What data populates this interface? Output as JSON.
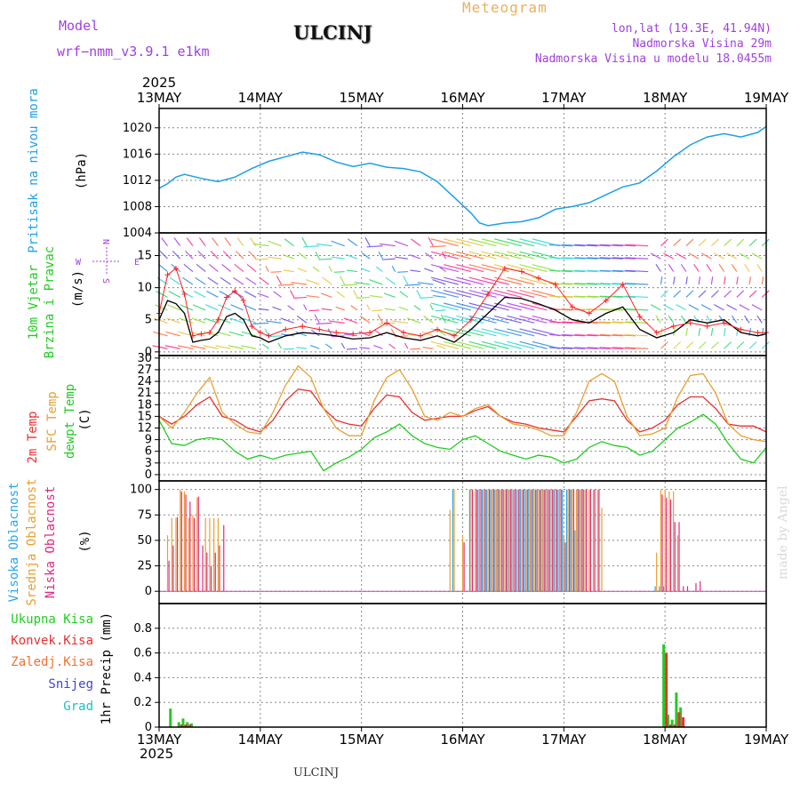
{
  "header": {
    "model_label": "Model",
    "model_name": "wrf−nmm_v3.9.1  e1km",
    "station": "ULCINJ",
    "meteogram": "Meteogram",
    "lonlat": "lon,lat (19.3E, 41.94N)",
    "elevation": "Nadmorska Visina 29m",
    "model_elevation": "Nadmorska Visina u modelu 18.0455m",
    "footer_station": "ULCINJ",
    "made_by": "made by Angel"
  },
  "axis": {
    "year": "2025",
    "dates": [
      "13MAY",
      "14MAY",
      "15MAY",
      "16MAY",
      "17MAY",
      "18MAY",
      "19MAY"
    ]
  },
  "colors": {
    "pressure": "#1e9fe8",
    "wind_speed": "#000000",
    "wind_gust": "#ff2020",
    "t2m": "#e83030",
    "sfc": "#e8a030",
    "dewpt": "#22cc22",
    "cloud_high": "#2aa8e8",
    "cloud_mid": "#e8a030",
    "cloud_low": "#e02880",
    "rain_total": "#22cc22",
    "rain_conv": "#e83030",
    "rain_frz": "#f07030",
    "snow": "#4040e0",
    "hail": "#20c0c0",
    "compass": "#a040e0"
  },
  "labels": {
    "pressure_title": "Pritisak na nivou mora",
    "pressure_unit": "(hPa)",
    "wind_title1": "10m Vjetar",
    "wind_title2": "Brzina i Pravac",
    "wind_unit": "(m/s)",
    "temp_t2m": "2m Temp",
    "temp_sfc": "SFC Temp",
    "temp_dew": "dewpt Temp",
    "temp_unit": "(C)",
    "cloud_high": "Visoka Oblacnost",
    "cloud_mid": "Srednja Oblacnost",
    "cloud_low": "Niska Oblacnost",
    "cloud_unit": "(%)",
    "precip_total": "Ukupna Kisa",
    "precip_conv": "Konvek.Kisa",
    "precip_frz": "Zaledj.Kisa",
    "precip_snow": "Snijeg",
    "precip_hail": "Grad",
    "precip_unit": "1hr Precip (mm)",
    "compass_n": "N",
    "compass_s": "S",
    "compass_e": "E",
    "compass_w": "W"
  },
  "chart_data": [
    {
      "type": "line",
      "name": "pressure",
      "xlabel": "",
      "ylabel": "(hPa)",
      "ylim": [
        1004,
        1022
      ],
      "yticks": [
        1004,
        1008,
        1012,
        1016,
        1020
      ],
      "x_hours": [
        0,
        2,
        4,
        6,
        10,
        14,
        18,
        22,
        26,
        30,
        34,
        38,
        42,
        46,
        50,
        54,
        58,
        62,
        66,
        70,
        74,
        76,
        78,
        82,
        86,
        90,
        94,
        98,
        102,
        106,
        110,
        114,
        118,
        122,
        126,
        130,
        134,
        138,
        142,
        144
      ],
      "values": [
        1010.8,
        1011.5,
        1012.5,
        1012.9,
        1012.3,
        1011.8,
        1012.5,
        1013.8,
        1014.9,
        1015.6,
        1016.3,
        1015.9,
        1014.8,
        1014.1,
        1014.6,
        1014.0,
        1013.8,
        1013.3,
        1011.8,
        1009.4,
        1007.0,
        1005.5,
        1005.1,
        1005.5,
        1005.7,
        1006.3,
        1007.6,
        1008.0,
        1008.6,
        1009.8,
        1011.0,
        1011.6,
        1013.4,
        1015.6,
        1017.4,
        1018.6,
        1019.1,
        1018.6,
        1019.3,
        1020.2
      ]
    },
    {
      "type": "line",
      "name": "wind",
      "xlabel": "",
      "ylabel": "(m/s)",
      "ylim": [
        0,
        17
      ],
      "yticks": [
        0,
        5,
        10,
        15
      ],
      "x_hours": [
        0,
        2,
        4,
        6,
        8,
        10,
        12,
        14,
        16,
        18,
        20,
        22,
        24,
        26,
        30,
        34,
        38,
        42,
        46,
        50,
        54,
        58,
        62,
        66,
        70,
        74,
        78,
        82,
        86,
        90,
        94,
        98,
        102,
        106,
        110,
        114,
        118,
        122,
        126,
        130,
        134,
        138,
        142,
        144
      ],
      "speed": [
        5,
        8,
        7.5,
        6,
        1.5,
        1.8,
        2,
        3,
        5.5,
        6,
        5,
        2.5,
        2.2,
        1.5,
        2.5,
        3,
        2.8,
        2.5,
        2,
        2.2,
        3,
        2.2,
        1.8,
        2.5,
        1.5,
        3.5,
        6,
        8.5,
        8.3,
        7.5,
        6.5,
        5,
        4.5,
        6,
        7,
        3.5,
        2.2,
        3,
        5,
        4.5,
        5,
        3,
        2.5,
        2.8
      ],
      "gust": [
        6,
        12,
        13,
        9,
        2.5,
        2.8,
        3,
        5,
        8.5,
        9.5,
        8,
        4,
        3,
        2.5,
        3.5,
        4,
        3.5,
        3,
        2.8,
        3,
        4.5,
        3,
        2.5,
        3.5,
        2.5,
        5,
        9,
        13,
        12.5,
        11.5,
        10.5,
        7,
        6,
        8,
        10.5,
        5.5,
        3,
        4,
        4.5,
        4,
        4.5,
        3.5,
        3,
        3
      ]
    },
    {
      "type": "line",
      "name": "temperature",
      "xlabel": "",
      "ylabel": "(C)",
      "ylim": [
        0,
        30
      ],
      "yticks": [
        0,
        3,
        6,
        9,
        12,
        15,
        18,
        21,
        24,
        27,
        30
      ],
      "x_hours": [
        0,
        3,
        6,
        9,
        12,
        15,
        18,
        21,
        24,
        27,
        30,
        33,
        36,
        39,
        42,
        45,
        48,
        51,
        54,
        57,
        60,
        63,
        66,
        69,
        72,
        75,
        78,
        81,
        84,
        87,
        90,
        93,
        96,
        99,
        102,
        105,
        108,
        111,
        114,
        117,
        120,
        123,
        126,
        129,
        132,
        135,
        138,
        141,
        144
      ],
      "series": [
        {
          "name": "2m Temp",
          "values": [
            15,
            13,
            15,
            18,
            20,
            15,
            14,
            12,
            11,
            14,
            19,
            22,
            21.5,
            17,
            14,
            13,
            12.5,
            17,
            20.5,
            20,
            16,
            14,
            14.5,
            15,
            15,
            16.5,
            17.5,
            15,
            13.5,
            13,
            12,
            11.5,
            11,
            15,
            19,
            19.5,
            19,
            14,
            11,
            12,
            14,
            18,
            20,
            20,
            17,
            13,
            12.5,
            12.5,
            11
          ]
        },
        {
          "name": "SFC Temp",
          "values": [
            15,
            12,
            16,
            21,
            25,
            16,
            13,
            11,
            10.5,
            16,
            23,
            28,
            25,
            17,
            12,
            10,
            10,
            19,
            25,
            27,
            22,
            15,
            14,
            16,
            15,
            17,
            18,
            15,
            13,
            12.5,
            11.5,
            10,
            10,
            16,
            24,
            26,
            24,
            15,
            10,
            10.5,
            12,
            20,
            25.5,
            26,
            21,
            13,
            10,
            9,
            8.5
          ]
        },
        {
          "name": "dewpt Temp",
          "values": [
            14,
            8,
            7.5,
            9,
            9.5,
            9,
            6,
            4,
            5,
            4,
            5,
            5.5,
            6,
            1,
            3,
            4.5,
            6.5,
            9.5,
            11,
            13,
            10,
            8,
            7,
            6.5,
            9,
            10,
            8,
            6,
            5,
            4,
            5,
            4.5,
            3,
            4,
            7,
            8.5,
            7.5,
            7,
            5,
            6,
            9,
            12,
            13.5,
            15.5,
            13,
            8,
            4,
            3,
            7
          ]
        }
      ]
    },
    {
      "type": "bar",
      "name": "clouds",
      "xlabel": "",
      "ylabel": "(%)",
      "ylim": [
        0,
        100
      ],
      "yticks": [
        0,
        25,
        50,
        75,
        100
      ],
      "x_hours": [
        2,
        3,
        4,
        5,
        6,
        7,
        8,
        9,
        10,
        11,
        12,
        13,
        14,
        15,
        16,
        17,
        18,
        19,
        20,
        21,
        22,
        23,
        24,
        26,
        69,
        70,
        72,
        74,
        75,
        76,
        77,
        78,
        79,
        80,
        81,
        82,
        83,
        84,
        85,
        86,
        87,
        88,
        89,
        90,
        91,
        92,
        93,
        94,
        95,
        96,
        97,
        98,
        99,
        100,
        101,
        102,
        103,
        104,
        105,
        118,
        119,
        120,
        121,
        122,
        123,
        124,
        125,
        126,
        127,
        128,
        129,
        130,
        131,
        132,
        133,
        134
      ],
      "series": [
        {
          "name": "Visoka Oblacnost",
          "values": [
            0,
            0,
            0,
            0,
            0,
            0,
            0,
            0,
            0,
            0,
            0,
            0,
            0,
            0,
            0,
            0,
            0,
            0,
            0,
            0,
            0,
            0,
            0,
            0,
            0,
            100,
            0,
            100,
            0,
            100,
            100,
            100,
            100,
            100,
            100,
            100,
            100,
            100,
            100,
            100,
            100,
            100,
            100,
            100,
            100,
            100,
            100,
            100,
            100,
            100,
            100,
            100,
            60,
            100,
            100,
            0,
            0,
            0,
            0,
            5,
            5,
            5,
            0,
            0,
            0,
            0,
            0,
            0,
            0,
            0,
            0,
            0,
            0,
            0,
            0,
            0
          ]
        },
        {
          "name": "Srednja Oblacnost",
          "values": [
            55,
            72,
            72,
            100,
            98,
            72,
            75,
            92,
            0,
            72,
            72,
            72,
            72,
            0,
            0,
            0,
            0,
            0,
            0,
            0,
            0,
            0,
            0,
            0,
            80,
            100,
            55,
            100,
            100,
            100,
            100,
            100,
            100,
            100,
            100,
            100,
            100,
            100,
            100,
            100,
            100,
            100,
            100,
            100,
            100,
            100,
            100,
            100,
            100,
            55,
            100,
            100,
            100,
            100,
            100,
            100,
            100,
            100,
            82,
            38,
            100,
            100,
            98,
            98,
            55,
            0,
            0,
            0,
            0,
            0,
            0,
            0,
            0,
            0,
            0,
            0
          ]
        },
        {
          "name": "Niska Oblacnost",
          "values": [
            30,
            45,
            73,
            98,
            95,
            88,
            72,
            93,
            45,
            38,
            25,
            38,
            45,
            65,
            0,
            0,
            0,
            0,
            0,
            0,
            0,
            0,
            0,
            0,
            0,
            0,
            48,
            100,
            100,
            100,
            100,
            100,
            100,
            100,
            100,
            100,
            100,
            100,
            100,
            100,
            100,
            100,
            100,
            100,
            100,
            100,
            100,
            100,
            100,
            48,
            100,
            100,
            100,
            100,
            100,
            100,
            100,
            100,
            0,
            0,
            95,
            92,
            90,
            68,
            68,
            5,
            5,
            0,
            8,
            10,
            0,
            0,
            0,
            0,
            0,
            0
          ]
        }
      ]
    },
    {
      "type": "bar",
      "name": "precipitation",
      "xlabel": "",
      "ylabel": "1hr Precip (mm)",
      "ylim": [
        0,
        0.95
      ],
      "yticks": [
        0,
        0.2,
        0.4,
        0.6,
        0.8
      ],
      "x_hours": [
        3,
        5,
        6,
        7,
        8,
        120,
        121,
        122,
        123,
        124
      ],
      "series": [
        {
          "name": "Ukupna Kisa",
          "values": [
            0.15,
            0.04,
            0.07,
            0.04,
            0.03,
            0.67,
            0.1,
            0.06,
            0.28,
            0.16
          ]
        },
        {
          "name": "Konvek.Kisa",
          "values": [
            0,
            0.02,
            0.02,
            0.02,
            0,
            0.6,
            0.02,
            0.02,
            0.12,
            0.08
          ]
        }
      ]
    }
  ]
}
